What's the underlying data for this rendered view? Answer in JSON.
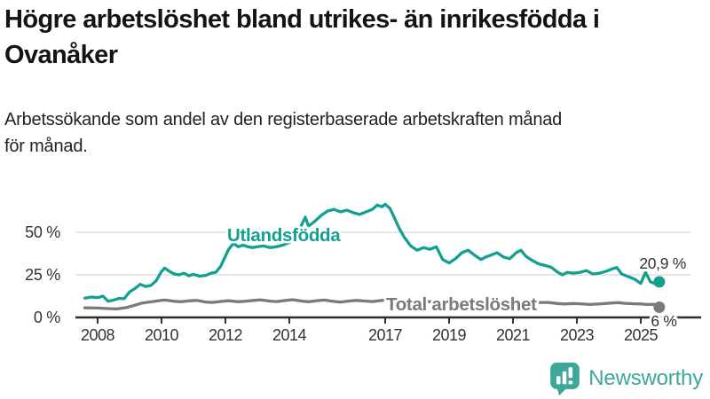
{
  "header": {
    "title": "Högre arbetslöshet bland utrikes- än inrikesfödda i\nOvanåker",
    "subtitle": "Arbetssökande som andel av den registerbaserade arbetskraften månad\nför månad."
  },
  "branding": {
    "logo_text": "Newsworthy",
    "logo_icon": "bar-chart-speech-bubble",
    "logo_color": "#3ca79b"
  },
  "chart_data": {
    "type": "line",
    "title": "Högre arbetslöshet bland utrikes- än inrikesfödda i Ovanåker",
    "subtitle": "Arbetssökande som andel av den registerbaserade arbetskraften månad för månad.",
    "x_label": "",
    "y_label": "",
    "x_range": [
      2007.6,
      2026.1
    ],
    "y_lim": [
      0,
      70
    ],
    "grid": "horizontal",
    "legend_position": "inline-labels",
    "x_ticks": [
      2008,
      2010,
      2012,
      2014,
      2017,
      2019,
      2021,
      2023,
      2025
    ],
    "y_ticks": [
      {
        "value": 0,
        "label": "0 %"
      },
      {
        "value": 25,
        "label": "25 %"
      },
      {
        "value": 50,
        "label": "50 %"
      }
    ],
    "colors": {
      "axis": "#2e2e2e",
      "grid": "#d8d8d8",
      "tick_text": "#333333",
      "end_label_text": "#333333"
    },
    "series": [
      {
        "name": "Utlandsfödda",
        "color": "#12a091",
        "end_value": 20.9,
        "end_label": "20,9 %",
        "points": [
          [
            2007.6,
            11.3
          ],
          [
            2007.8,
            12.0
          ],
          [
            2008.0,
            11.6
          ],
          [
            2008.17,
            12.5
          ],
          [
            2008.33,
            9.5
          ],
          [
            2008.5,
            10.2
          ],
          [
            2008.67,
            11.2
          ],
          [
            2008.83,
            11.0
          ],
          [
            2009.0,
            15.0
          ],
          [
            2009.17,
            17.0
          ],
          [
            2009.33,
            19.5
          ],
          [
            2009.5,
            18.2
          ],
          [
            2009.67,
            18.8
          ],
          [
            2009.83,
            21.5
          ],
          [
            2010.0,
            27.0
          ],
          [
            2010.1,
            29.0
          ],
          [
            2010.25,
            27.0
          ],
          [
            2010.4,
            25.5
          ],
          [
            2010.55,
            25.0
          ],
          [
            2010.7,
            26.0
          ],
          [
            2010.85,
            24.5
          ],
          [
            2011.0,
            25.3
          ],
          [
            2011.2,
            24.2
          ],
          [
            2011.4,
            24.8
          ],
          [
            2011.55,
            26.0
          ],
          [
            2011.7,
            26.5
          ],
          [
            2011.85,
            30.0
          ],
          [
            2012.0,
            36.0
          ],
          [
            2012.1,
            40.0
          ],
          [
            2012.25,
            43.5
          ],
          [
            2012.4,
            41.5
          ],
          [
            2012.55,
            42.5
          ],
          [
            2012.7,
            41.5
          ],
          [
            2012.85,
            41.0
          ],
          [
            2013.0,
            41.5
          ],
          [
            2013.2,
            42.0
          ],
          [
            2013.4,
            41.0
          ],
          [
            2013.6,
            41.5
          ],
          [
            2013.8,
            42.5
          ],
          [
            2014.0,
            44.0
          ],
          [
            2014.2,
            47.5
          ],
          [
            2014.35,
            53.0
          ],
          [
            2014.5,
            58.9
          ],
          [
            2014.6,
            53.6
          ],
          [
            2014.8,
            56.5
          ],
          [
            2015.0,
            60.0
          ],
          [
            2015.2,
            62.5
          ],
          [
            2015.4,
            63.5
          ],
          [
            2015.6,
            62.0
          ],
          [
            2015.8,
            63.0
          ],
          [
            2016.0,
            61.5
          ],
          [
            2016.2,
            60.5
          ],
          [
            2016.4,
            62.0
          ],
          [
            2016.6,
            63.5
          ],
          [
            2016.75,
            66.0
          ],
          [
            2016.9,
            65.0
          ],
          [
            2017.0,
            66.5
          ],
          [
            2017.15,
            64.0
          ],
          [
            2017.3,
            58.0
          ],
          [
            2017.45,
            52.0
          ],
          [
            2017.6,
            47.0
          ],
          [
            2017.8,
            42.0
          ],
          [
            2018.0,
            39.5
          ],
          [
            2018.2,
            41.0
          ],
          [
            2018.4,
            40.0
          ],
          [
            2018.6,
            41.5
          ],
          [
            2018.8,
            34.0
          ],
          [
            2019.0,
            32.0
          ],
          [
            2019.2,
            34.5
          ],
          [
            2019.4,
            38.0
          ],
          [
            2019.6,
            39.5
          ],
          [
            2019.8,
            36.5
          ],
          [
            2020.0,
            34.0
          ],
          [
            2020.15,
            35.5
          ],
          [
            2020.3,
            36.5
          ],
          [
            2020.5,
            38.0
          ],
          [
            2020.7,
            35.5
          ],
          [
            2020.9,
            34.5
          ],
          [
            2021.1,
            38.0
          ],
          [
            2021.25,
            39.5
          ],
          [
            2021.4,
            36.0
          ],
          [
            2021.6,
            33.5
          ],
          [
            2021.8,
            31.5
          ],
          [
            2022.0,
            30.5
          ],
          [
            2022.2,
            29.5
          ],
          [
            2022.4,
            26.5
          ],
          [
            2022.55,
            25.0
          ],
          [
            2022.7,
            26.5
          ],
          [
            2022.9,
            26.0
          ],
          [
            2023.1,
            26.5
          ],
          [
            2023.3,
            27.5
          ],
          [
            2023.5,
            25.5
          ],
          [
            2023.7,
            26.0
          ],
          [
            2023.9,
            27.0
          ],
          [
            2024.1,
            28.5
          ],
          [
            2024.25,
            29.3
          ],
          [
            2024.4,
            25.5
          ],
          [
            2024.6,
            24.0
          ],
          [
            2024.8,
            22.5
          ],
          [
            2025.0,
            20.0
          ],
          [
            2025.15,
            26.5
          ],
          [
            2025.3,
            21.0
          ],
          [
            2025.45,
            19.8
          ],
          [
            2025.58,
            20.9
          ]
        ]
      },
      {
        "name": "Total arbetslöshet",
        "color": "#7a7a7a",
        "end_value": 6,
        "end_label": "6 %",
        "points": [
          [
            2007.6,
            5.6
          ],
          [
            2008.0,
            5.5
          ],
          [
            2008.3,
            5.2
          ],
          [
            2008.6,
            5.0
          ],
          [
            2008.9,
            5.8
          ],
          [
            2009.1,
            6.8
          ],
          [
            2009.4,
            8.5
          ],
          [
            2009.7,
            9.2
          ],
          [
            2009.9,
            9.8
          ],
          [
            2010.1,
            10.2
          ],
          [
            2010.4,
            9.5
          ],
          [
            2010.6,
            9.2
          ],
          [
            2010.9,
            9.8
          ],
          [
            2011.1,
            10.0
          ],
          [
            2011.4,
            9.0
          ],
          [
            2011.6,
            8.8
          ],
          [
            2011.9,
            9.5
          ],
          [
            2012.1,
            9.8
          ],
          [
            2012.4,
            9.2
          ],
          [
            2012.6,
            9.5
          ],
          [
            2012.9,
            10.0
          ],
          [
            2013.1,
            10.3
          ],
          [
            2013.4,
            9.6
          ],
          [
            2013.6,
            9.3
          ],
          [
            2013.9,
            10.0
          ],
          [
            2014.1,
            10.4
          ],
          [
            2014.4,
            9.6
          ],
          [
            2014.6,
            9.2
          ],
          [
            2014.9,
            9.9
          ],
          [
            2015.1,
            10.2
          ],
          [
            2015.4,
            9.4
          ],
          [
            2015.6,
            9.0
          ],
          [
            2015.9,
            9.7
          ],
          [
            2016.1,
            10.0
          ],
          [
            2016.4,
            9.6
          ],
          [
            2016.6,
            9.3
          ],
          [
            2016.9,
            10.0
          ],
          [
            2017.1,
            10.2
          ],
          [
            2017.4,
            9.6
          ],
          [
            2017.6,
            9.2
          ],
          [
            2017.9,
            9.8
          ],
          [
            2018.1,
            9.9
          ],
          [
            2018.4,
            9.2
          ],
          [
            2018.6,
            8.8
          ],
          [
            2018.9,
            9.3
          ],
          [
            2019.1,
            9.4
          ],
          [
            2019.4,
            8.9
          ],
          [
            2019.6,
            8.6
          ],
          [
            2019.9,
            9.1
          ],
          [
            2020.1,
            9.3
          ],
          [
            2020.4,
            9.0
          ],
          [
            2020.6,
            8.8
          ],
          [
            2020.9,
            9.2
          ],
          [
            2021.1,
            9.3
          ],
          [
            2021.4,
            8.8
          ],
          [
            2021.6,
            8.4
          ],
          [
            2021.9,
            8.8
          ],
          [
            2022.1,
            8.8
          ],
          [
            2022.4,
            8.2
          ],
          [
            2022.6,
            7.9
          ],
          [
            2022.9,
            8.2
          ],
          [
            2023.1,
            8.0
          ],
          [
            2023.4,
            7.6
          ],
          [
            2023.6,
            7.8
          ],
          [
            2023.9,
            8.2
          ],
          [
            2024.1,
            8.5
          ],
          [
            2024.3,
            8.7
          ],
          [
            2024.5,
            8.3
          ],
          [
            2024.8,
            8.0
          ],
          [
            2025.0,
            7.9
          ],
          [
            2025.2,
            7.6
          ],
          [
            2025.4,
            7.7
          ],
          [
            2025.58,
            6.0
          ]
        ]
      }
    ]
  }
}
